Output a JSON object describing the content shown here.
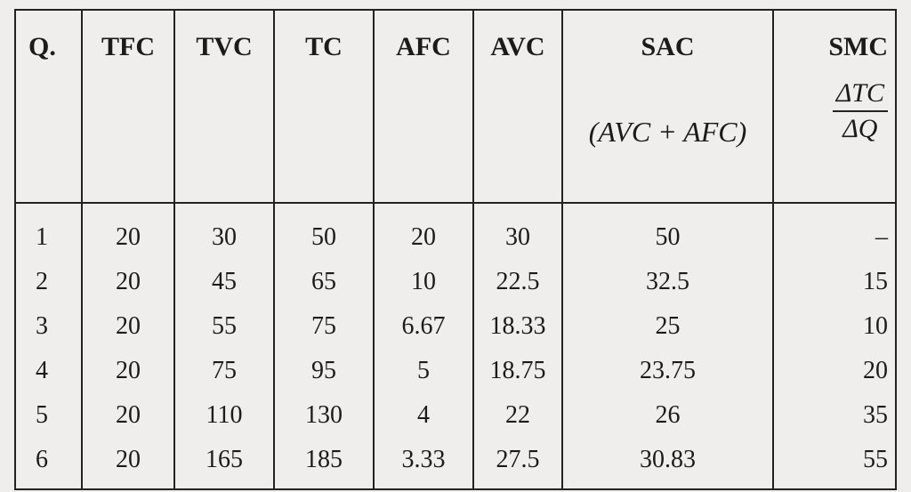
{
  "table": {
    "headers": {
      "q": "Q.",
      "tfc": "TFC",
      "tvc": "TVC",
      "tc": "TC",
      "afc": "AFC",
      "avc": "AVC",
      "sac": "SAC",
      "sac_formula": "(AVC + AFC)",
      "smc": "SMC",
      "smc_numerator": "ΔTC",
      "smc_denominator": "ΔQ"
    },
    "rows": [
      [
        "1",
        "20",
        "30",
        "50",
        "20",
        "30",
        "50",
        "–"
      ],
      [
        "2",
        "20",
        "45",
        "65",
        "10",
        "22.5",
        "32.5",
        "15"
      ],
      [
        "3",
        "20",
        "55",
        "75",
        "6.67",
        "18.33",
        "25",
        "10"
      ],
      [
        "4",
        "20",
        "75",
        "95",
        "5",
        "18.75",
        "23.75",
        "20"
      ],
      [
        "5",
        "20",
        "110",
        "130",
        "4",
        "22",
        "26",
        "35"
      ],
      [
        "6",
        "20",
        "165",
        "185",
        "3.33",
        "27.5",
        "30.83",
        "55"
      ]
    ]
  }
}
